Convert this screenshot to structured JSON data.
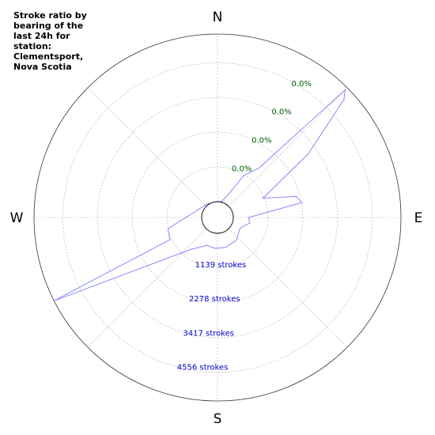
{
  "chart_data": {
    "type": "polar-line",
    "title": "Stroke ratio by bearing of the last 24h for station: Clementsport, Nova Scotia",
    "directions": [
      "N",
      "E",
      "S",
      "W"
    ],
    "ring_percent_labels": [
      "0.0%",
      "0.0%",
      "0.0%",
      "0.0%"
    ],
    "ring_count_labels": [
      "1139 strokes",
      "2278 strokes",
      "3417 strokes",
      "4556 strokes"
    ],
    "r_ticks": [
      1139,
      2278,
      3417,
      4556
    ],
    "r_max": 5500,
    "grid": true,
    "line_color": "#8888ff",
    "percent_label_color": "#006400",
    "count_label_color": "#0000cc",
    "series": [
      {
        "points": [
          {
            "bearing": 0,
            "strokes": 0
          },
          {
            "bearing": 15,
            "strokes": 30
          },
          {
            "bearing": 25,
            "strokes": 300
          },
          {
            "bearing": 32,
            "strokes": 1100
          },
          {
            "bearing": 40,
            "strokes": 1600
          },
          {
            "bearing": 45,
            "strokes": 5400
          },
          {
            "bearing": 47,
            "strokes": 5150
          },
          {
            "bearing": 55,
            "strokes": 3100
          },
          {
            "bearing": 67,
            "strokes": 1100
          },
          {
            "bearing": 75,
            "strokes": 2150
          },
          {
            "bearing": 80,
            "strokes": 2300
          },
          {
            "bearing": 90,
            "strokes": 500
          },
          {
            "bearing": 100,
            "strokes": 550
          },
          {
            "bearing": 115,
            "strokes": 300
          },
          {
            "bearing": 140,
            "strokes": 450
          },
          {
            "bearing": 165,
            "strokes": 500
          },
          {
            "bearing": 185,
            "strokes": 500
          },
          {
            "bearing": 200,
            "strokes": 450
          },
          {
            "bearing": 220,
            "strokes": 850
          },
          {
            "bearing": 243,
            "strokes": 5500
          },
          {
            "bearing": 245,
            "strokes": 1200
          },
          {
            "bearing": 257,
            "strokes": 1150
          },
          {
            "bearing": 265,
            "strokes": 700
          },
          {
            "bearing": 280,
            "strokes": 300
          },
          {
            "bearing": 320,
            "strokes": 50
          },
          {
            "bearing": 360,
            "strokes": 0
          }
        ]
      }
    ]
  }
}
